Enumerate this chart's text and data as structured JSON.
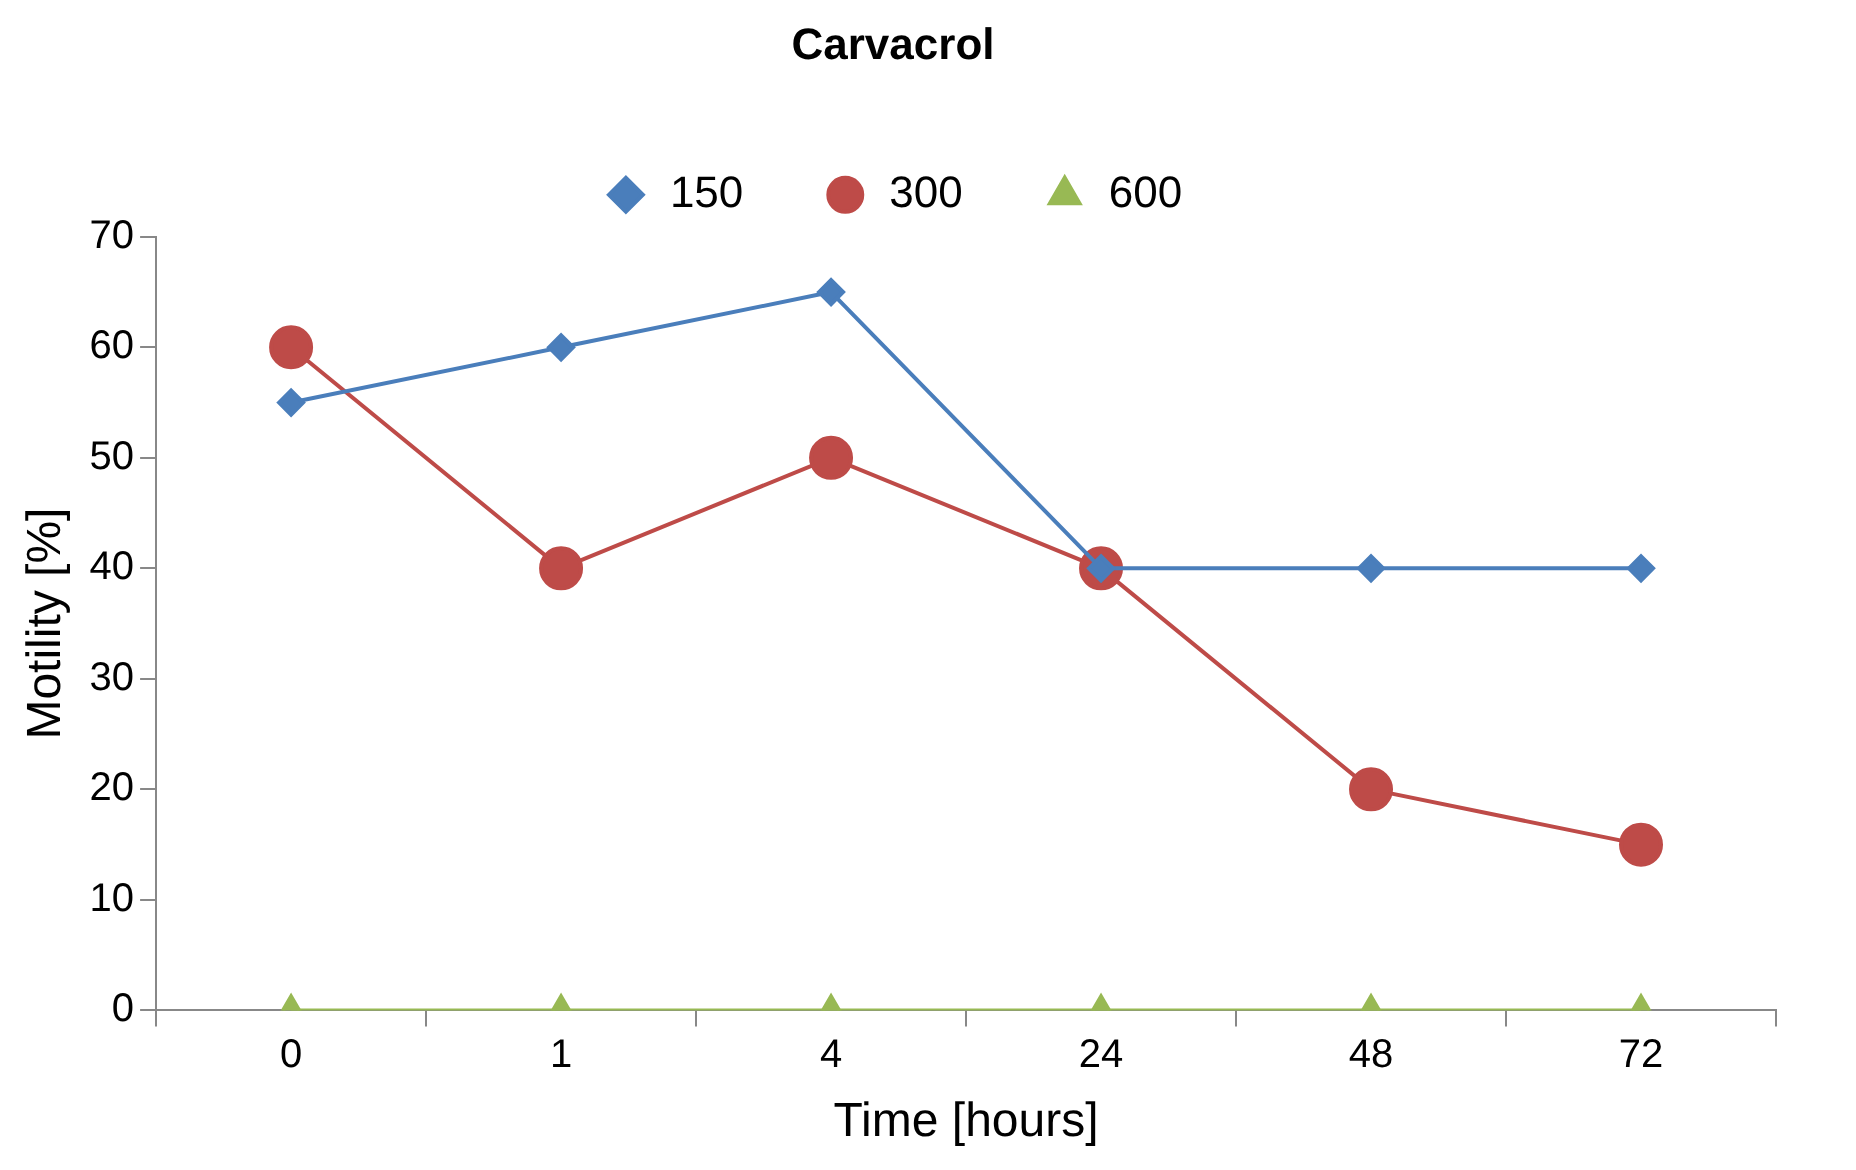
{
  "chart_data": {
    "type": "line",
    "title": "Carvacrol",
    "xlabel": "Time [hours]",
    "ylabel": "Motility [%]",
    "categories": [
      "0",
      "1",
      "4",
      "24",
      "48",
      "72"
    ],
    "ylim": [
      0,
      70
    ],
    "yticks": [
      0,
      10,
      20,
      30,
      40,
      50,
      60,
      70
    ],
    "grid": false,
    "legend": "top",
    "series": [
      {
        "name": "150",
        "color": "#4a7ebb",
        "marker": "diamond",
        "values": [
          55,
          60,
          65,
          40,
          40,
          40
        ]
      },
      {
        "name": "300",
        "color": "#be4b48",
        "marker": "circle",
        "values": [
          60,
          40,
          50,
          40,
          20,
          15
        ]
      },
      {
        "name": "600",
        "color": "#98b954",
        "marker": "triangle",
        "values": [
          0,
          0,
          0,
          0,
          0,
          0
        ]
      }
    ]
  }
}
